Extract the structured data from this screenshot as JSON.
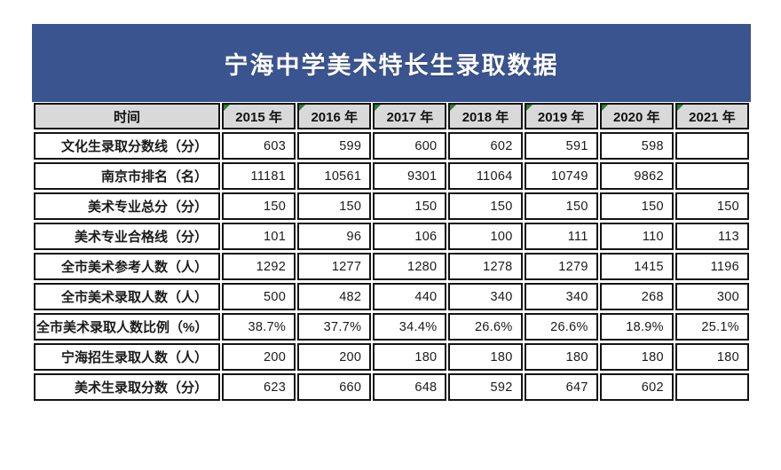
{
  "colors": {
    "title_bg": "#3a5490",
    "title_text": "#ffffff",
    "header_bg": "#d9d9d9",
    "cell_border": "#141414",
    "marker_green": "#2f7d35",
    "page_bg": "#ffffff"
  },
  "icons": {
    "corner_marker": "green-corner-marker-icon"
  },
  "chart_data": {
    "type": "table",
    "title": "宁海中学美术特长生录取数据",
    "header": [
      "时间",
      "2015 年",
      "2016 年",
      "2017 年",
      "2018 年",
      "2019 年",
      "2020 年",
      "2021 年"
    ],
    "rows": [
      {
        "label": "文化生录取分数线（分）",
        "values": [
          "603",
          "599",
          "600",
          "602",
          "591",
          "598",
          ""
        ]
      },
      {
        "label": "南京市排名（名）",
        "values": [
          "11181",
          "10561",
          "9301",
          "11064",
          "10749",
          "9862",
          ""
        ]
      },
      {
        "label": "美术专业总分（分）",
        "values": [
          "150",
          "150",
          "150",
          "150",
          "150",
          "150",
          "150"
        ]
      },
      {
        "label": "美术专业合格线（分）",
        "values": [
          "101",
          "96",
          "106",
          "100",
          "111",
          "110",
          "113"
        ]
      },
      {
        "label": "全市美术参考人数（人）",
        "values": [
          "1292",
          "1277",
          "1280",
          "1278",
          "1279",
          "1415",
          "1196"
        ]
      },
      {
        "label": "全市美术录取人数（人）",
        "values": [
          "500",
          "482",
          "440",
          "340",
          "340",
          "268",
          "300"
        ]
      },
      {
        "label": "全市美术录取人数比例（%）",
        "values": [
          "38.7%",
          "37.7%",
          "34.4%",
          "26.6%",
          "26.6%",
          "18.9%",
          "25.1%"
        ]
      },
      {
        "label": "宁海招生录取人数（人）",
        "values": [
          "200",
          "200",
          "180",
          "180",
          "180",
          "180",
          "180"
        ]
      },
      {
        "label": "美术生录取分数（分）",
        "values": [
          "623",
          "660",
          "648",
          "592",
          "647",
          "602",
          ""
        ]
      }
    ]
  }
}
